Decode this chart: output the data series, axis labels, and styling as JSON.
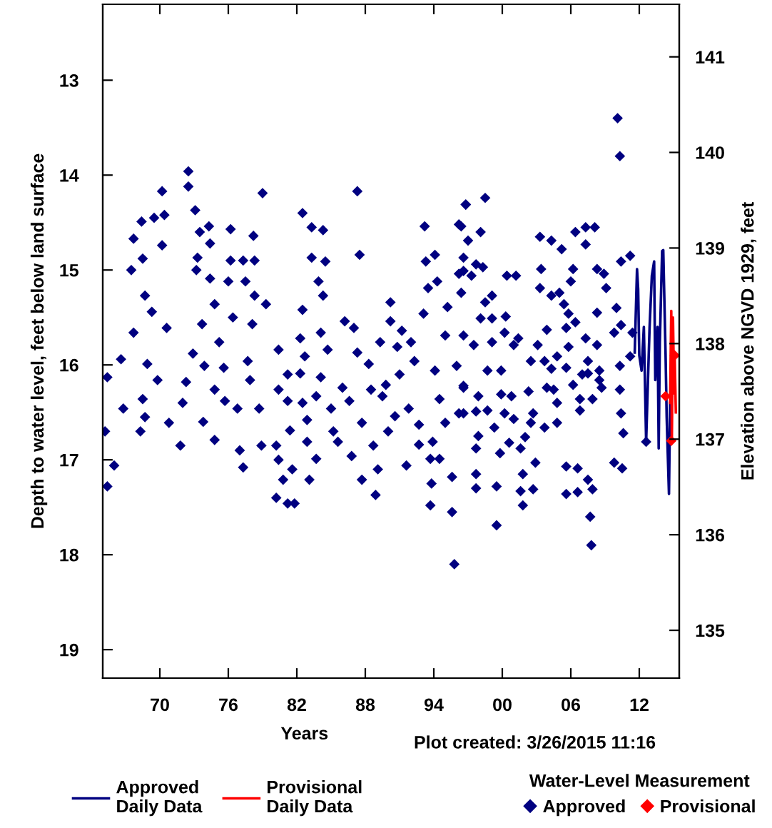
{
  "chart_data": {
    "type": "scatter",
    "xlabel": "Years",
    "ylabel": "Depth to water level, feet below land surface",
    "y2label": "Elevation above NGVD 1929, feet",
    "annotations": [
      "Plot created: 3/26/2015 11:16"
    ],
    "legend_title": "Water-Level Measurement",
    "legend": "bottom",
    "grid": false,
    "xlim": [
      1965,
      2015.5
    ],
    "xticks": [
      {
        "value": 1970,
        "label": "70"
      },
      {
        "value": 1976,
        "label": "76"
      },
      {
        "value": 1982,
        "label": "82"
      },
      {
        "value": 1988,
        "label": "88"
      },
      {
        "value": 1994,
        "label": "94"
      },
      {
        "value": 2000,
        "label": "00"
      },
      {
        "value": 2006,
        "label": "06"
      },
      {
        "value": 2012,
        "label": "12"
      }
    ],
    "ylim": [
      19.3,
      12.2
    ],
    "yticks": [
      13,
      14,
      15,
      16,
      17,
      18,
      19
    ],
    "y2lim": [
      134.5,
      141.55
    ],
    "y2ticks": [
      135,
      136,
      137,
      138,
      139,
      140,
      141
    ],
    "series": [
      {
        "name": "Approved\nDaily Data",
        "type": "line",
        "color": "#000080",
        "marker": "none",
        "line_style": "solid",
        "x": [
          2011.6,
          2011.8,
          2011.9,
          2012.0,
          2012.2,
          2012.4,
          2012.6,
          2012.8,
          2012.9,
          2013.1,
          2013.3,
          2013.4,
          2013.6,
          2013.7,
          2013.8,
          2014.0,
          2014.1,
          2014.3,
          2014.4,
          2014.6,
          2014.7
        ],
        "values": [
          15.87,
          14.99,
          15.2,
          15.9,
          16.06,
          15.6,
          16.81,
          16.0,
          15.61,
          15.06,
          14.91,
          16.16,
          15.6,
          16.88,
          15.76,
          14.8,
          14.79,
          15.87,
          16.55,
          17.36,
          16.4
        ]
      },
      {
        "name": "Provisional\nDaily Data",
        "type": "line",
        "color": "#ff0000",
        "marker": "none",
        "line_style": "solid",
        "x": [
          2014.7,
          2014.8,
          2014.85,
          2014.95,
          2015.05,
          2015.1,
          2015.2
        ],
        "values": [
          16.4,
          15.43,
          16.8,
          15.5,
          16.3,
          15.9,
          16.5
        ]
      },
      {
        "name": "Approved",
        "color": "#000080",
        "marker": "diamond",
        "x": [
          1965.4,
          1965.2,
          1965.4,
          1966.6,
          1966.0,
          1967.7,
          1967.5,
          1967.7,
          1966.8,
          1968.3,
          1968.4,
          1968.5,
          1968.7,
          1969.3,
          1969.5,
          1970.2,
          1970.4,
          1970.2,
          1970.6,
          1968.9,
          1969.8,
          1968.5,
          1968.7,
          1970.8,
          1971.8,
          1972.5,
          1972.5,
          1973.1,
          1973.5,
          1973.3,
          1973.2,
          1973.7,
          1972.9,
          1972.3,
          1972.0,
          1973.9,
          1974.3,
          1974.4,
          1974.4,
          1974.8,
          1975.2,
          1974.8,
          1974.8,
          1973.8,
          1976.2,
          1976.2,
          1976.0,
          1976.4,
          1975.6,
          1975.7,
          1976.8,
          1977.3,
          1978.2,
          1977.5,
          1978.3,
          1978.1,
          1977.7,
          1977.9,
          1977.0,
          1977.3,
          1979.0,
          1978.3,
          1979.3,
          1978.7,
          1978.9,
          1980.2,
          1980.4,
          1980.4,
          1987.3,
          1982.5,
          1983.3,
          1984.3,
          1983.3,
          1984.5,
          1983.9,
          1984.3,
          1987.5,
          1982.5,
          1982.3,
          1982.7,
          1984.1,
          1984.7,
          1982.3,
          1984.1,
          1981.2,
          1981.2,
          1982.5,
          1983.7,
          1982.9,
          1981.4,
          1980.2,
          1980.4,
          1981.6,
          1980.8,
          1982.9,
          1983.7,
          1983.1,
          1981.2,
          1981.8,
          1985.0,
          1985.2,
          1985.6,
          1986.0,
          1986.2,
          1986.6,
          1987.0,
          1987.3,
          1986.8,
          1987.7,
          1987.7,
          1988.3,
          1988.5,
          1988.7,
          1988.9,
          1989.1,
          1989.3,
          1989.8,
          1989.5,
          1990.0,
          1990.2,
          1990.2,
          1990.8,
          1991.0,
          1990.6,
          1991.6,
          1991.8,
          1992.0,
          1992.3,
          1991.2,
          1992.7,
          1992.7,
          1993.1,
          1993.3,
          1993.2,
          1993.5,
          1993.9,
          1994.1,
          1994.3,
          1994.1,
          1993.7,
          1993.8,
          1993.7,
          1994.5,
          1994.5,
          1995.0,
          1995.2,
          1995.0,
          1995.6,
          1995.6,
          1995.8,
          1996.2,
          1996.8,
          1996.6,
          1996.0,
          1996.6,
          1996.2,
          2010.1,
          2010.3,
          1998.5,
          1996.8,
          1996.4,
          1998.1,
          1997.0,
          1996.6,
          1997.7,
          1998.3,
          1996.2,
          1997.3,
          1996.4,
          2000.4,
          2001.2,
          1998.5,
          1999.1,
          1998.1,
          1999.1,
          2000.3,
          1996.6,
          1997.5,
          1999.1,
          2000.2,
          2001.0,
          2001.4,
          1998.7,
          1999.9,
          1996.6,
          1997.9,
          1999.9,
          2000.8,
          2002.3,
          1996.6,
          1997.7,
          1998.7,
          2000.2,
          2001.0,
          1999.3,
          1997.9,
          2000.6,
          2001.6,
          1999.8,
          1997.7,
          2002.0,
          2002.7,
          2002.5,
          2002.9,
          2001.8,
          1997.7,
          1997.7,
          1999.5,
          2001.6,
          2002.7,
          2001.8,
          1999.5,
          2003.3,
          2004.3,
          2005.2,
          2006.4,
          2007.3,
          2008.1,
          2007.3,
          2003.4,
          2003.3,
          2004.3,
          2005.0,
          2006.2,
          2006.0,
          2008.3,
          2008.9,
          2009.1,
          2010.4,
          2011.2,
          2005.4,
          2005.8,
          2006.4,
          2003.9,
          2005.6,
          2008.3,
          2010.0,
          2009.8,
          2010.4,
          2007.3,
          2003.1,
          2005.8,
          2008.3,
          2011.4,
          2002.5,
          2003.7,
          2004.8,
          2004.3,
          2005.6,
          2007.5,
          2010.3,
          2011.2,
          2007.5,
          2008.5,
          2007.0,
          2006.2,
          2003.9,
          2004.5,
          2008.7,
          2008.5,
          2010.3,
          2006.8,
          2007.9,
          2004.8,
          2006.8,
          2003.7,
          2004.8,
          2010.4,
          2010.6,
          2009.8,
          2010.5,
          2005.6,
          2006.6,
          2007.5,
          2007.9,
          2005.6,
          2006.6,
          2007.7,
          2007.8,
          2012.6
        ],
        "values": [
          17.28,
          16.7,
          16.13,
          15.94,
          17.06,
          14.67,
          15.0,
          15.66,
          16.46,
          16.7,
          14.49,
          14.88,
          15.27,
          15.44,
          14.45,
          14.17,
          14.42,
          14.74,
          15.61,
          15.99,
          16.16,
          16.36,
          16.55,
          16.61,
          16.85,
          13.96,
          14.12,
          14.37,
          14.6,
          14.87,
          15.0,
          15.57,
          15.88,
          16.18,
          16.4,
          16.01,
          14.54,
          14.72,
          15.09,
          15.36,
          15.76,
          16.26,
          16.79,
          16.6,
          14.57,
          14.9,
          15.12,
          15.5,
          16.03,
          16.38,
          16.46,
          14.9,
          14.64,
          15.12,
          15.27,
          15.57,
          15.96,
          16.16,
          16.9,
          17.08,
          14.19,
          14.9,
          15.36,
          16.46,
          16.85,
          17.4,
          15.84,
          16.26,
          14.17,
          14.4,
          14.55,
          14.58,
          14.87,
          14.91,
          15.12,
          15.27,
          14.84,
          15.42,
          15.72,
          15.91,
          15.66,
          15.84,
          16.09,
          16.13,
          16.1,
          16.38,
          16.4,
          16.33,
          16.58,
          16.69,
          16.85,
          17.0,
          17.1,
          17.21,
          16.81,
          16.99,
          17.21,
          17.46,
          17.46,
          16.46,
          16.7,
          16.81,
          16.24,
          15.54,
          16.38,
          15.61,
          15.87,
          16.96,
          16.61,
          17.21,
          15.99,
          16.26,
          16.85,
          17.37,
          17.1,
          15.76,
          16.21,
          16.33,
          16.7,
          15.34,
          15.54,
          15.81,
          16.1,
          16.54,
          17.06,
          16.46,
          15.76,
          15.96,
          15.64,
          16.63,
          16.84,
          15.46,
          14.91,
          14.54,
          15.19,
          16.81,
          14.84,
          15.12,
          16.06,
          16.99,
          17.25,
          17.48,
          16.36,
          16.99,
          15.69,
          15.39,
          16.61,
          17.18,
          17.55,
          18.1,
          14.52,
          14.31,
          15.01,
          16.01,
          16.24,
          16.51,
          13.4,
          13.8,
          14.24,
          14.31,
          14.54,
          14.6,
          14.69,
          14.87,
          14.94,
          14.97,
          15.04,
          15.06,
          15.24,
          15.06,
          15.06,
          15.34,
          15.27,
          15.51,
          15.51,
          15.49,
          15.69,
          15.79,
          15.76,
          15.66,
          15.79,
          15.72,
          16.06,
          16.06,
          16.22,
          16.33,
          16.31,
          16.33,
          16.28,
          16.51,
          16.49,
          16.48,
          16.51,
          16.57,
          16.66,
          16.75,
          16.82,
          16.88,
          16.93,
          16.88,
          16.76,
          16.51,
          16.61,
          17.03,
          17.15,
          17.15,
          17.3,
          17.28,
          17.33,
          17.31,
          17.48,
          17.69,
          14.65,
          14.69,
          14.78,
          14.6,
          14.55,
          14.55,
          14.73,
          14.99,
          15.19,
          15.27,
          15.24,
          14.99,
          15.12,
          14.99,
          15.04,
          15.19,
          14.91,
          14.85,
          15.36,
          15.46,
          15.55,
          15.63,
          15.61,
          15.45,
          15.4,
          15.66,
          15.58,
          15.72,
          15.79,
          15.81,
          15.79,
          15.66,
          15.96,
          15.96,
          15.91,
          16.04,
          16.03,
          15.96,
          16.01,
          15.91,
          16.09,
          16.06,
          16.1,
          16.21,
          16.24,
          16.26,
          16.24,
          16.16,
          16.26,
          16.36,
          16.36,
          16.4,
          16.48,
          16.66,
          16.61,
          16.51,
          16.72,
          17.03,
          17.09,
          17.07,
          17.09,
          17.21,
          17.31,
          17.36,
          17.34,
          17.6,
          17.9,
          16.81
        ]
      },
      {
        "name": "Provisional",
        "color": "#ff0000",
        "marker": "diamond",
        "x": [
          2014.3,
          2015.1,
          2014.8
        ],
        "values": [
          16.33,
          15.9,
          16.8
        ]
      }
    ]
  }
}
